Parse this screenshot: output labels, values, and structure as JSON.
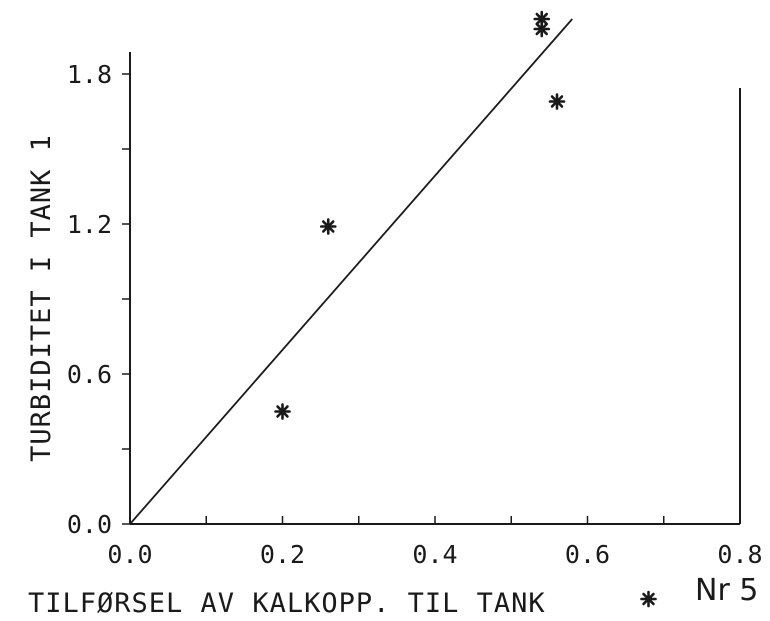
{
  "chart_data": {
    "type": "scatter",
    "xlabel": "TILFØRSEL AV KALKOPP. TIL TANK",
    "ylabel": "TURBIDITET I TANK 1",
    "xlim": [
      0.0,
      0.8
    ],
    "ylim": [
      0.0,
      2.0
    ],
    "x_ticks": [
      "0.0",
      "0.2",
      "0.4",
      "0.6",
      "0.8"
    ],
    "y_ticks": [
      "0.0",
      "0.6",
      "1.2",
      "1.8"
    ],
    "points": [
      {
        "x": 0.2,
        "y": 0.45
      },
      {
        "x": 0.26,
        "y": 1.19
      },
      {
        "x": 0.54,
        "y": 1.98
      },
      {
        "x": 0.54,
        "y": 2.02
      },
      {
        "x": 0.56,
        "y": 1.69
      },
      {
        "x": 0.68,
        "y": -0.3
      }
    ],
    "fit_line": {
      "x": [
        0.0,
        0.58
      ],
      "y": [
        0.0,
        2.02
      ]
    },
    "grid": false,
    "marker": "star",
    "colors": {
      "ink": "#1a1a1a"
    }
  },
  "page_note": "Nr 5"
}
